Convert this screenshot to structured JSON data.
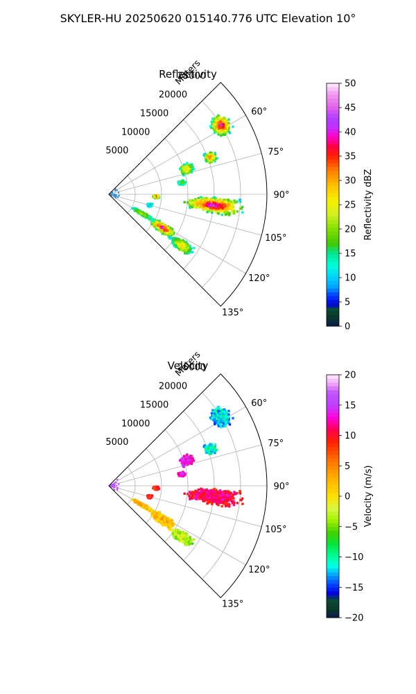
{
  "figure": {
    "suptitle": "SKYLER-HU  20250620  015140.776 UTC Elevation 10°"
  },
  "chart_data": [
    {
      "type": "polar-sector",
      "title": "Reflectivity",
      "range_label": "Meters",
      "range_ticks": [
        5000,
        10000,
        15000,
        20000,
        25000
      ],
      "range_max": 30000,
      "azimuth_range": [
        45,
        135
      ],
      "azimuth_ticks": [
        "60°",
        "75°",
        "90°",
        "105°",
        "120°",
        "135°"
      ],
      "grid": true,
      "colorbar": {
        "label": "Reflectivity dBZ",
        "min": 0,
        "max": 50,
        "ticks": [
          "0",
          "5",
          "10",
          "15",
          "20",
          "25",
          "30",
          "35",
          "40",
          "45",
          "50"
        ],
        "stops": [
          {
            "v": 0,
            "c": "#0a1a4a"
          },
          {
            "v": 2,
            "c": "#0a3a2a"
          },
          {
            "v": 3.5,
            "c": "#0a4a3a"
          },
          {
            "v": 4.5,
            "c": "#0000dd"
          },
          {
            "v": 6.5,
            "c": "#0044ff"
          },
          {
            "v": 8,
            "c": "#00a0ff"
          },
          {
            "v": 10,
            "c": "#00d0ff"
          },
          {
            "v": 12.5,
            "c": "#00ffd8"
          },
          {
            "v": 15,
            "c": "#00e896"
          },
          {
            "v": 17,
            "c": "#40c800"
          },
          {
            "v": 20,
            "c": "#80e000"
          },
          {
            "v": 23,
            "c": "#d0f020"
          },
          {
            "v": 26,
            "c": "#f8f000"
          },
          {
            "v": 29,
            "c": "#ffc000"
          },
          {
            "v": 32,
            "c": "#ff8000"
          },
          {
            "v": 35,
            "c": "#ff2000"
          },
          {
            "v": 37,
            "c": "#ff0040"
          },
          {
            "v": 39,
            "c": "#ff00c8"
          },
          {
            "v": 41,
            "c": "#c030ff"
          },
          {
            "v": 43,
            "c": "#b040ff"
          },
          {
            "v": 45,
            "c": "#e060e8"
          },
          {
            "v": 48,
            "c": "#f4a0f4"
          },
          {
            "v": 50,
            "c": "#fff0ff"
          }
        ]
      },
      "cells": [
        {
          "az": 58.5,
          "r": 25000,
          "dr": 2100,
          "daz": 5,
          "peak": 42
        },
        {
          "az": 70,
          "r": 20500,
          "dr": 1300,
          "daz": 3.5,
          "peak": 35
        },
        {
          "az": 72,
          "r": 15500,
          "dr": 1500,
          "daz": 4.5,
          "peak": 30
        },
        {
          "az": 81,
          "r": 14000,
          "dr": 900,
          "daz": 2.5,
          "peak": 20
        },
        {
          "az": 96,
          "r": 20000,
          "dr": 6500,
          "daz": 5,
          "peak": 44
        },
        {
          "az": 92.5,
          "r": 9000,
          "dr": 700,
          "daz": 3,
          "peak": 38
        },
        {
          "az": 105,
          "r": 8000,
          "dr": 600,
          "daz": 3,
          "peak": 10
        },
        {
          "az": 122,
          "r": 12000,
          "dr": 3000,
          "daz": 5,
          "peak": 42
        },
        {
          "az": 125,
          "r": 17000,
          "dr": 2500,
          "daz": 4,
          "peak": 30
        },
        {
          "az": 120,
          "r": 7500,
          "dr": 2500,
          "daz": 3,
          "peak": 22
        }
      ]
    },
    {
      "type": "polar-sector",
      "title": "Velocity",
      "range_label": "Meters",
      "range_ticks": [
        5000,
        10000,
        15000,
        20000,
        25000
      ],
      "range_max": 30000,
      "azimuth_range": [
        45,
        135
      ],
      "azimuth_ticks": [
        "60°",
        "75°",
        "90°",
        "105°",
        "120°",
        "135°"
      ],
      "grid": true,
      "colorbar": {
        "label": "Velocity (m/s)",
        "min": -20,
        "max": 20,
        "ticks": [
          "−20",
          "−15",
          "−10",
          "−5",
          "0",
          "5",
          "10",
          "15",
          "20"
        ],
        "stops": [
          {
            "v": -20,
            "c": "#0a1a4a"
          },
          {
            "v": -18.5,
            "c": "#0a3a2a"
          },
          {
            "v": -17,
            "c": "#0a4a3a"
          },
          {
            "v": -16,
            "c": "#0000dd"
          },
          {
            "v": -14.5,
            "c": "#0044ff"
          },
          {
            "v": -13,
            "c": "#00a0ff"
          },
          {
            "v": -11.5,
            "c": "#00ffe8"
          },
          {
            "v": -10,
            "c": "#00ffa0"
          },
          {
            "v": -8,
            "c": "#00e840"
          },
          {
            "v": -6,
            "c": "#40d000"
          },
          {
            "v": -4,
            "c": "#a0f000"
          },
          {
            "v": -2,
            "c": "#d8f840"
          },
          {
            "v": 0,
            "c": "#ffe000"
          },
          {
            "v": 3,
            "c": "#ffb000"
          },
          {
            "v": 6,
            "c": "#ff7000"
          },
          {
            "v": 9,
            "c": "#ff2000"
          },
          {
            "v": 11,
            "c": "#ff0050"
          },
          {
            "v": 13,
            "c": "#ff00e0"
          },
          {
            "v": 15,
            "c": "#c040ff"
          },
          {
            "v": 17,
            "c": "#c050ff"
          },
          {
            "v": 18.5,
            "c": "#f0a0f8"
          },
          {
            "v": 20,
            "c": "#fff0ff"
          }
        ]
      },
      "cells": [
        {
          "az": 58.5,
          "r": 25000,
          "dr": 2100,
          "daz": 5,
          "peak": -11
        },
        {
          "az": 70,
          "r": 20500,
          "dr": 1300,
          "daz": 3.5,
          "peak": -10
        },
        {
          "az": 72,
          "r": 15500,
          "dr": 1500,
          "daz": 4.5,
          "peak": 15
        },
        {
          "az": 81,
          "r": 14000,
          "dr": 900,
          "daz": 2.5,
          "peak": 15
        },
        {
          "az": 96,
          "r": 20000,
          "dr": 6500,
          "daz": 5,
          "peak": 12
        },
        {
          "az": 92.5,
          "r": 9000,
          "dr": 700,
          "daz": 3,
          "peak": 10
        },
        {
          "az": 105,
          "r": 8000,
          "dr": 600,
          "daz": 3,
          "peak": 10
        },
        {
          "az": 122,
          "r": 12000,
          "dr": 3000,
          "daz": 5,
          "peak": 3
        },
        {
          "az": 125,
          "r": 17000,
          "dr": 2500,
          "daz": 4,
          "peak": -2
        },
        {
          "az": 120,
          "r": 7500,
          "dr": 2500,
          "daz": 3,
          "peak": 3
        }
      ]
    }
  ]
}
